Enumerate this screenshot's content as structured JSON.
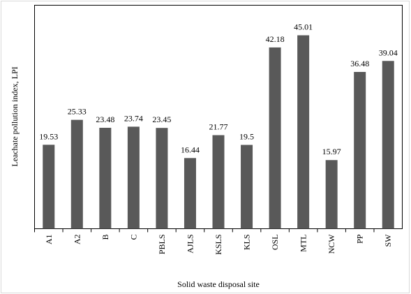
{
  "chart_data": {
    "type": "bar",
    "x_label": "Solid waste disposal site",
    "y_label": "Leachate pollution index, LPI",
    "categories": [
      "A1",
      "A2",
      "B",
      "C",
      "PBLS",
      "AJLS",
      "KSLS",
      "KLS",
      "OSL",
      "MTL",
      "NCW",
      "PP",
      "SW"
    ],
    "values": [
      19.53,
      25.33,
      23.48,
      23.74,
      23.45,
      16.44,
      21.77,
      19.5,
      42.18,
      45.01,
      15.97,
      36.48,
      39.04
    ],
    "color": "#595959",
    "ylim": [
      0,
      52
    ]
  }
}
